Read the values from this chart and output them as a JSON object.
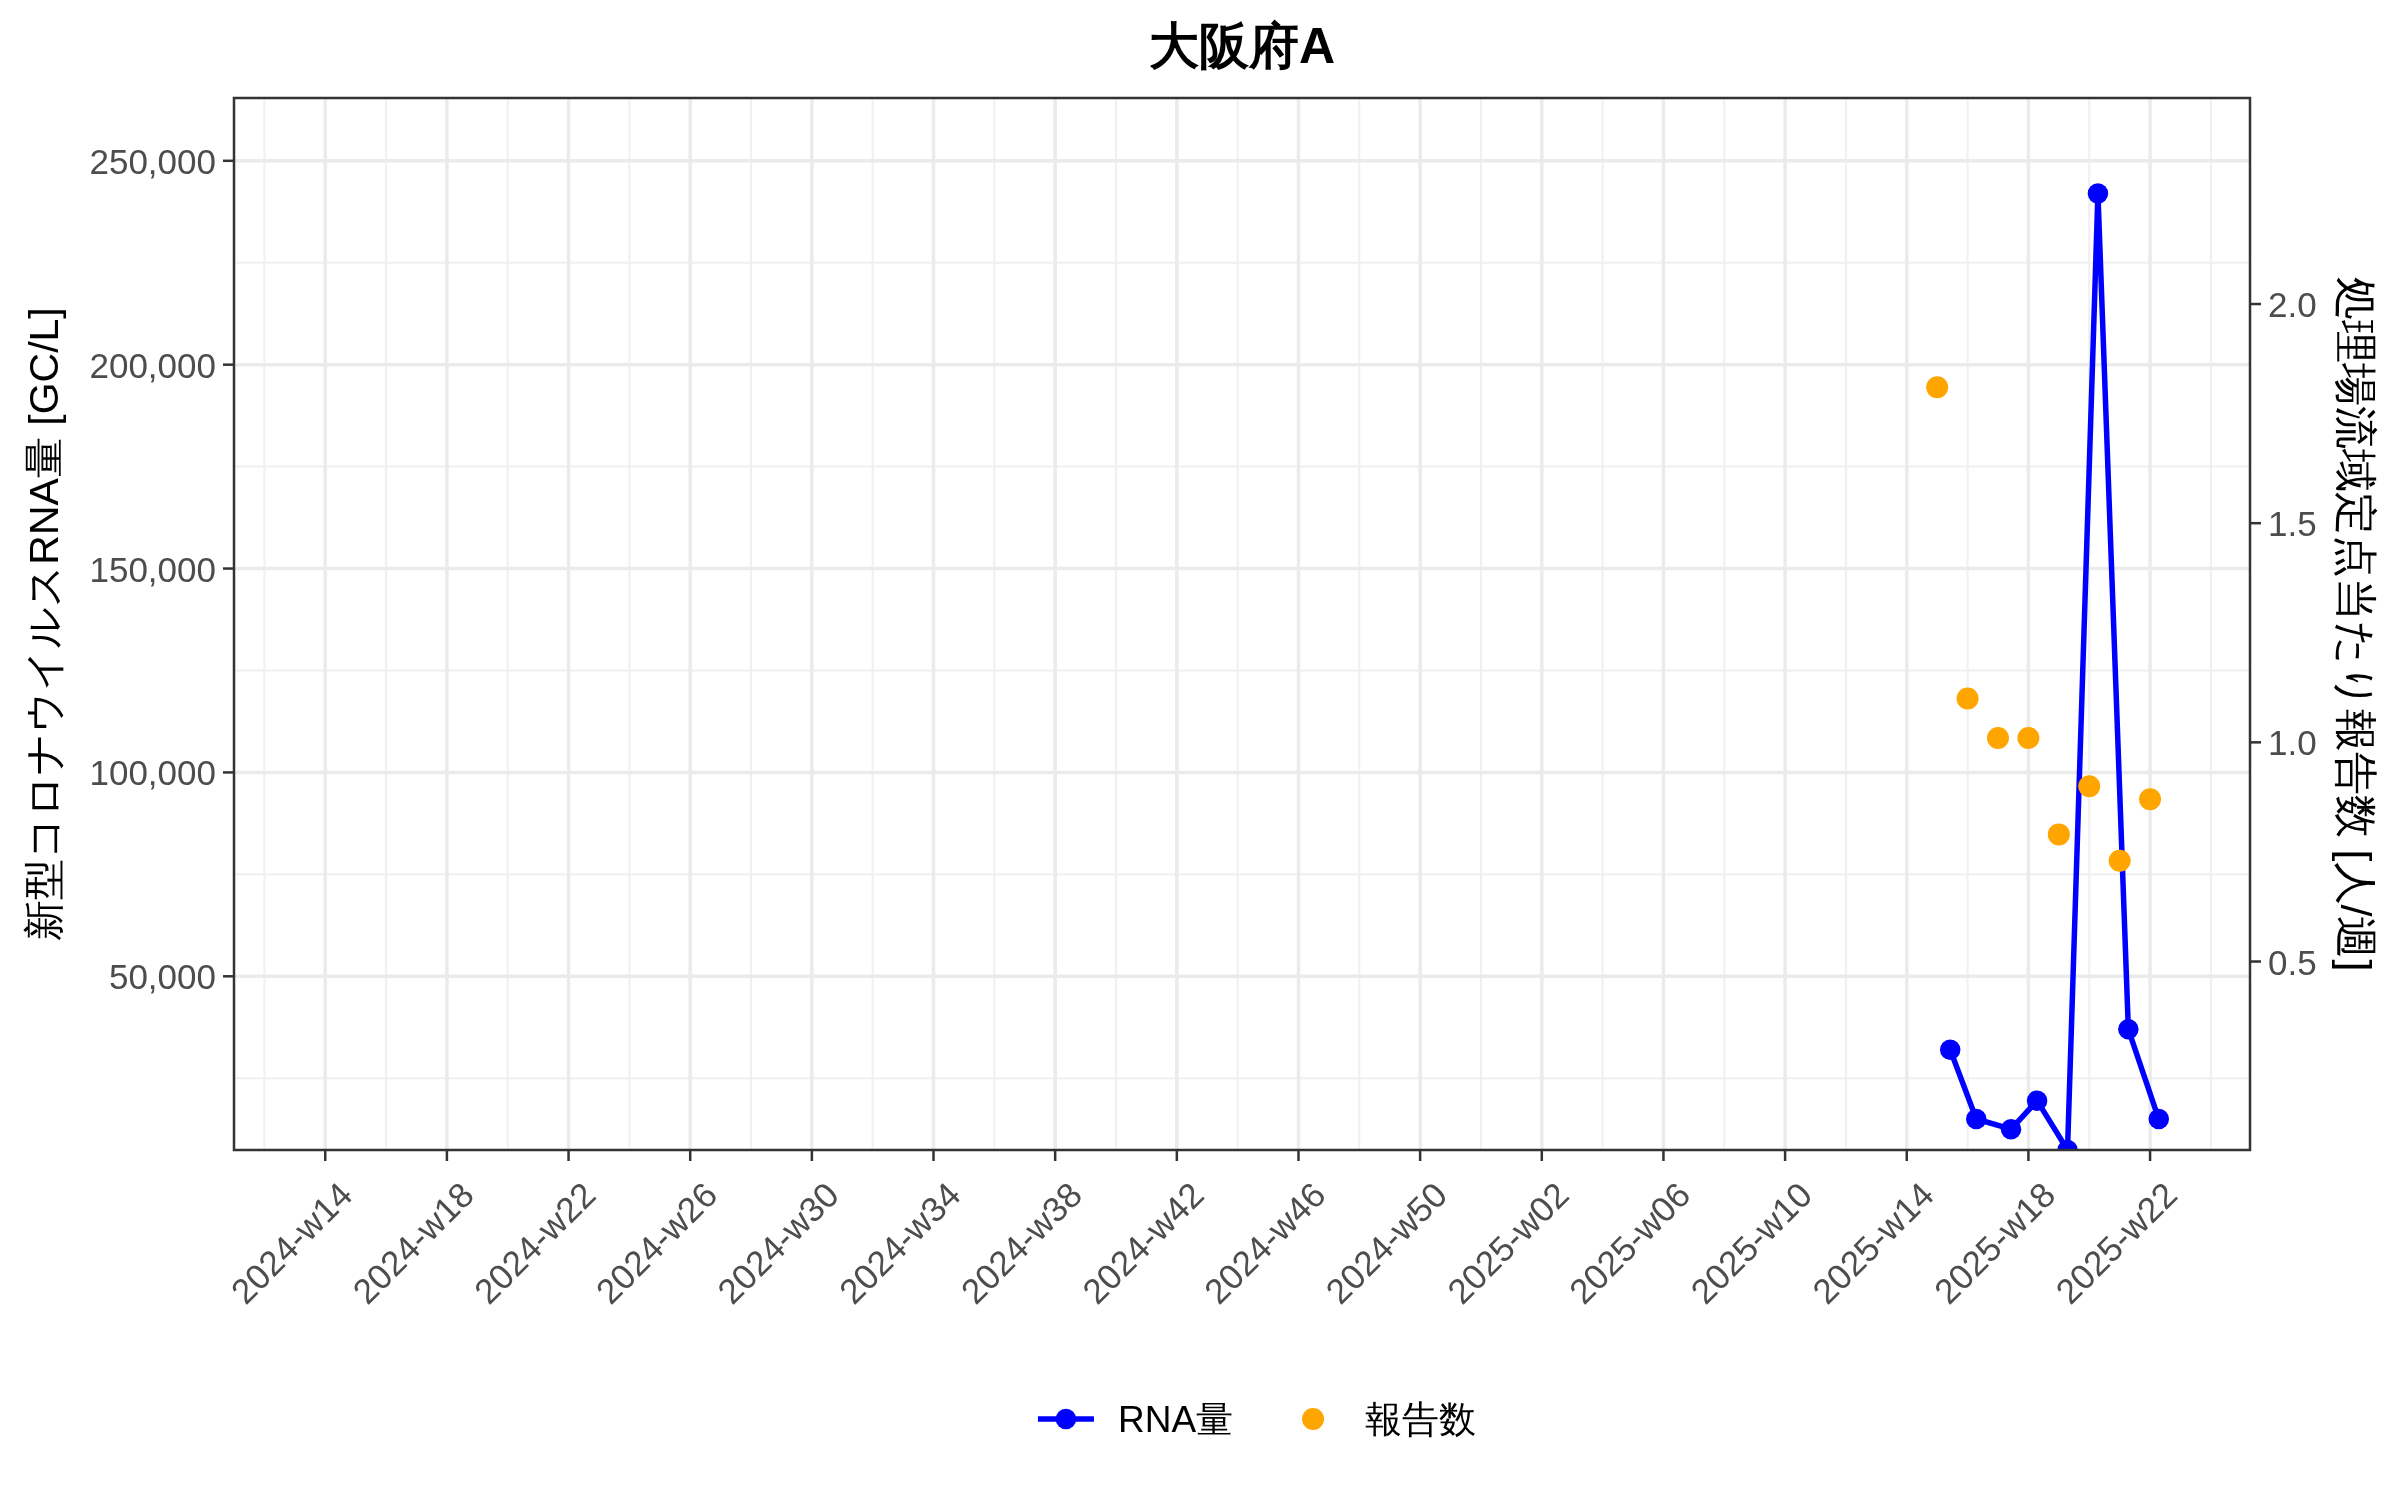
{
  "chart_data": {
    "type": "line",
    "title": "大阪府A",
    "ylabel": "新型コロナウイルスRNA量 [GC/L]",
    "y2label": "処理場流域定点当たり報告数 [人/週]",
    "xlim": [
      "2024-03-11",
      "2025-06-18"
    ],
    "xticks": [
      {
        "value": "2024-04-01",
        "label": "2024-w14"
      },
      {
        "value": "2024-04-29",
        "label": "2024-w18"
      },
      {
        "value": "2024-05-27",
        "label": "2024-w22"
      },
      {
        "value": "2024-06-24",
        "label": "2024-w26"
      },
      {
        "value": "2024-07-22",
        "label": "2024-w30"
      },
      {
        "value": "2024-08-19",
        "label": "2024-w34"
      },
      {
        "value": "2024-09-16",
        "label": "2024-w38"
      },
      {
        "value": "2024-10-14",
        "label": "2024-w42"
      },
      {
        "value": "2024-11-11",
        "label": "2024-w46"
      },
      {
        "value": "2024-12-09",
        "label": "2024-w50"
      },
      {
        "value": "2025-01-06",
        "label": "2025-w02"
      },
      {
        "value": "2025-02-03",
        "label": "2025-w06"
      },
      {
        "value": "2025-03-03",
        "label": "2025-w10"
      },
      {
        "value": "2025-03-31",
        "label": "2025-w14"
      },
      {
        "value": "2025-04-28",
        "label": "2025-w18"
      },
      {
        "value": "2025-05-26",
        "label": "2025-w22"
      }
    ],
    "ylim": [
      7400,
      265400
    ],
    "yticks": [
      {
        "value": 50000,
        "label": "50,000"
      },
      {
        "value": 100000,
        "label": "100,000"
      },
      {
        "value": 150000,
        "label": "150,000"
      },
      {
        "value": 200000,
        "label": "200,000"
      },
      {
        "value": 250000,
        "label": "250,000"
      }
    ],
    "y2lim": [
      0.07,
      2.47
    ],
    "y2ticks": [
      0.5,
      {
        "value": 1,
        "label": "1.0"
      },
      1.5,
      {
        "value": 2,
        "label": "2.0"
      }
    ],
    "grid": true,
    "legend": "bottom",
    "marker": "circle",
    "series": [
      {
        "name": "RNA量",
        "color": "#0000ff",
        "x": [
          "2025-04-10",
          "2025-04-16",
          "2025-04-24",
          "2025-04-30",
          "2025-05-07",
          "2025-05-14",
          "2025-05-21",
          "2025-05-28"
        ],
        "values": [
          32000,
          15000,
          12500,
          19500,
          7400,
          242000,
          37000,
          15000
        ]
      },
      {
        "name": "報告数",
        "type": "scatter",
        "axis": "y2",
        "color": "#ffa500",
        "x": [
          "2025-04-07",
          "2025-04-14",
          "2025-04-21",
          "2025-04-28",
          "2025-05-05",
          "2025-05-12",
          "2025-05-19",
          "2025-05-26"
        ],
        "values": [
          1.81,
          1.1,
          1.01,
          1.01,
          0.79,
          0.9,
          0.73,
          0.87
        ]
      }
    ]
  }
}
